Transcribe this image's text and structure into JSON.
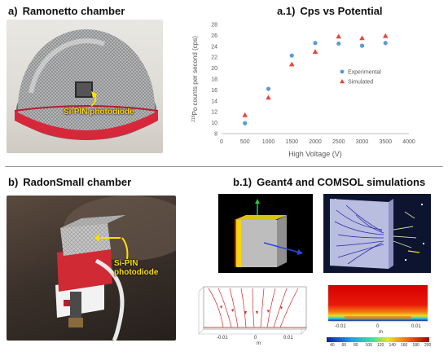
{
  "panels": {
    "a": {
      "tag": "a)",
      "title": "Ramonetto chamber",
      "label": "Si-PIN photodiode"
    },
    "a1": {
      "tag": "a.1)",
      "title": "Cps vs Potential"
    },
    "b": {
      "tag": "b)",
      "title": "RadonSmall chamber",
      "label_line1": "Si-PIN",
      "label_line2": "photodiode"
    },
    "b1": {
      "tag": "b.1)",
      "title": "Geant4 and COMSOL simulations"
    }
  },
  "comsol_left": {
    "ticks": [
      "-0.01",
      "0",
      "0.01"
    ],
    "unit": "m"
  },
  "comsol_right": {
    "ticks": [
      "-0.01",
      "0",
      "0.01"
    ],
    "unit": "m",
    "colorbar_ticks": [
      "40",
      "60",
      "80",
      "100",
      "120",
      "140",
      "160",
      "180",
      "200"
    ]
  },
  "chart_data": {
    "type": "scatter",
    "title": "Cps vs Potential",
    "xlabel": "High Voltage (V)",
    "ylabel": "218Po counts per second (cps)",
    "xlim": [
      0,
      4000
    ],
    "ylim": [
      8,
      28
    ],
    "xticks": [
      0,
      500,
      1000,
      1500,
      2000,
      2500,
      3000,
      3500,
      4000
    ],
    "yticks": [
      8,
      10,
      12,
      14,
      16,
      18,
      20,
      22,
      24,
      26,
      28
    ],
    "grid": false,
    "legend_position": "right",
    "series": [
      {
        "name": "Experimental",
        "marker": "circle",
        "color": "#5b9bd5",
        "x": [
          500,
          1000,
          1500,
          2000,
          2500,
          3000,
          3500
        ],
        "y": [
          9.9,
          16.2,
          22.3,
          24.6,
          24.5,
          24.1,
          24.6
        ]
      },
      {
        "name": "Simulated",
        "marker": "triangle",
        "color": "#e8453c",
        "x": [
          500,
          1000,
          1500,
          2000,
          2500,
          3000,
          3500
        ],
        "y": [
          11.4,
          14.6,
          20.7,
          23.0,
          25.8,
          25.5,
          25.9
        ]
      }
    ]
  }
}
